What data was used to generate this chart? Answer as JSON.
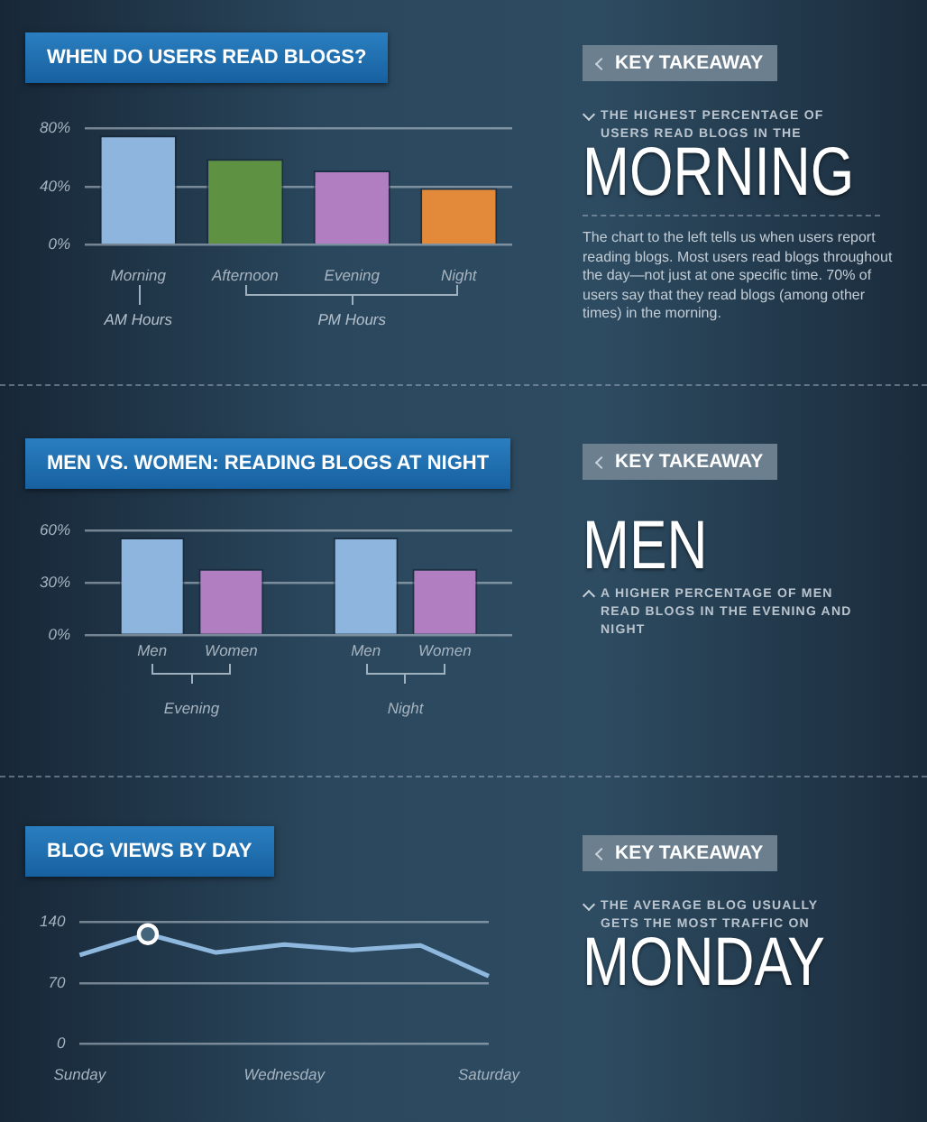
{
  "chart_data": [
    {
      "type": "bar",
      "title": "WHEN DO USERS READ BLOGS?",
      "categories": [
        "Morning",
        "Afternoon",
        "Evening",
        "Night"
      ],
      "values": [
        75,
        59,
        51,
        39
      ],
      "colors": [
        "#8db5dd",
        "#5f9142",
        "#b27ec2",
        "#e2893a"
      ],
      "ylim": [
        0,
        80
      ],
      "yticks": [
        {
          "value": 0,
          "label": "0%"
        },
        {
          "value": 40,
          "label": "40%"
        },
        {
          "value": 80,
          "label": "80%"
        }
      ],
      "grid": "y",
      "legend": false,
      "annotations": [
        "AM Hours",
        "PM Hours"
      ]
    },
    {
      "type": "other",
      "title": "KEY TAKEAWAY",
      "subtitle": "THE HIGHEST PERCENTAGE OF USERS READ BLOGS IN THE",
      "annotations": [
        "MORNING",
        "The chart to the left tells us when users report reading blogs. Most users read blogs throughout the day—not just at one specific time. 70% of users say that they read blogs (among other times) in the morning."
      ]
    },
    {
      "type": "bar",
      "title": "MEN VS. WOMEN: READING BLOGS AT NIGHT",
      "categories": [
        "Evening",
        "Night"
      ],
      "series": [
        {
          "name": "Men",
          "color": "#8db5dd",
          "values": [
            56,
            56
          ]
        },
        {
          "name": "Women",
          "color": "#b27ec2",
          "values": [
            38,
            38
          ]
        }
      ],
      "ylim": [
        0,
        60
      ],
      "yticks": [
        {
          "value": 0,
          "label": "0%"
        },
        {
          "value": 30,
          "label": "30%"
        },
        {
          "value": 60,
          "label": "60%"
        }
      ],
      "grid": "y",
      "legend": false
    },
    {
      "type": "other",
      "title": "KEY TAKEAWAY",
      "subtitle": "A HIGHER PERCENTAGE OF MEN READ BLOGS IN THE EVENING AND NIGHT",
      "annotations": [
        "MEN"
      ]
    },
    {
      "type": "line",
      "title": "BLOG VIEWS BY DAY",
      "categories": [
        "Sunday",
        null,
        null,
        "Wednesday",
        null,
        null,
        "Saturday"
      ],
      "series": [
        {
          "color": "#8fb8df",
          "values": [
            102,
            126,
            105,
            114,
            108,
            113,
            78
          ],
          "marker": "none"
        },
        {
          "type": "scatter",
          "color": "#ffffff",
          "values": [
            null,
            126,
            null,
            null,
            null,
            null,
            null
          ],
          "marker": "circle"
        }
      ],
      "ylim": [
        0,
        140
      ],
      "yticks": [
        0,
        70,
        140
      ],
      "grid": "y",
      "legend": false
    },
    {
      "type": "other",
      "title": "KEY TAKEAWAY",
      "subtitle": "THE AVERAGE BLOG USUALLY GETS THE MOST TRAFFIC ON",
      "annotations": [
        "MONDAY"
      ]
    }
  ]
}
